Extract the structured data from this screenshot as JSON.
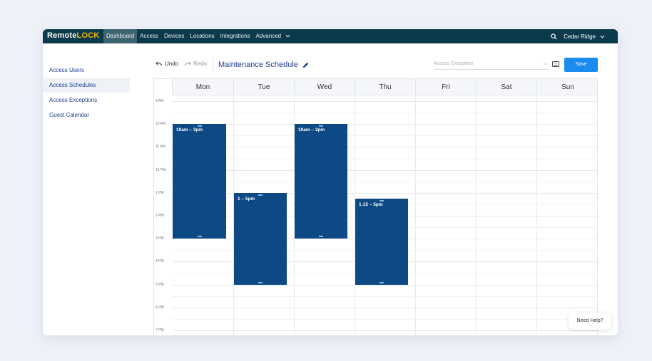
{
  "app": {
    "logo_text": "Remote",
    "logo_accent": "LOCK",
    "brand_color": "#0b3a4c",
    "accent_color": "#f2b705"
  },
  "nav": {
    "items": [
      {
        "label": "Dashboard",
        "active": true
      },
      {
        "label": "Access",
        "active": false
      },
      {
        "label": "Devices",
        "active": false
      },
      {
        "label": "Locations",
        "active": false
      },
      {
        "label": "Integrations",
        "active": false
      },
      {
        "label": "Advanced",
        "active": false,
        "icon": "chevron-down-icon"
      }
    ],
    "location": "Cedar Ridge"
  },
  "sidebar": {
    "items": [
      {
        "label": "Access Users",
        "active": false
      },
      {
        "label": "Access Schedules",
        "active": true
      },
      {
        "label": "Access Exceptions",
        "active": false
      },
      {
        "label": "Guest Calendar",
        "active": false
      }
    ]
  },
  "toolbar": {
    "undo_label": "Undo",
    "redo_label": "Redo",
    "schedule_title": "Maintenance Schedule",
    "exception_placeholder": "Access Exception",
    "save_label": "Save",
    "save_color": "#1a8cf0"
  },
  "calendar": {
    "days": [
      "Mon",
      "Tue",
      "Wed",
      "Thu",
      "Fri",
      "Sat",
      "Sun"
    ],
    "time_labels": [
      "9 AM",
      "10 AM",
      "11 AM",
      "12 PM",
      "1 PM",
      "2 PM",
      "3 PM",
      "4 PM",
      "5 PM",
      "6 PM",
      "7 PM"
    ],
    "event_color": "#0d4a85",
    "events": [
      {
        "day": "Mon",
        "label": "10am – 3pm"
      },
      {
        "day": "Tue",
        "label": "1 – 5pm"
      },
      {
        "day": "Wed",
        "label": "10am – 3pm"
      },
      {
        "day": "Thu",
        "label": "1:15 – 5pm"
      }
    ]
  },
  "help": {
    "label": "Need Help?"
  }
}
